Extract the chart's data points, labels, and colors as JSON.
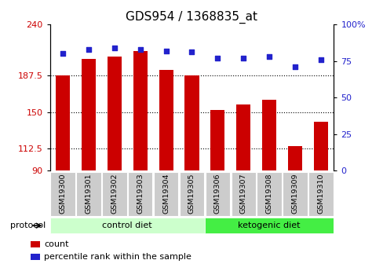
{
  "title": "GDS954 / 1368835_at",
  "samples": [
    "GSM19300",
    "GSM19301",
    "GSM19302",
    "GSM19303",
    "GSM19304",
    "GSM19305",
    "GSM19306",
    "GSM19307",
    "GSM19308",
    "GSM19309",
    "GSM19310"
  ],
  "bar_values": [
    188,
    205,
    207,
    213,
    193,
    188,
    152,
    158,
    163,
    115,
    140
  ],
  "dot_values": [
    80,
    83,
    84,
    83,
    82,
    81,
    77,
    77,
    78,
    71,
    76
  ],
  "ylim_left": [
    90,
    240
  ],
  "ylim_right": [
    0,
    100
  ],
  "yticks_left": [
    90,
    112.5,
    150,
    187.5,
    240
  ],
  "yticks_right": [
    0,
    25,
    50,
    75,
    100
  ],
  "bar_color": "#CC0000",
  "dot_color": "#2222CC",
  "groups": [
    {
      "label": "control diet",
      "indices": [
        0,
        1,
        2,
        3,
        4,
        5
      ],
      "color": "#CCFFCC"
    },
    {
      "label": "ketogenic diet",
      "indices": [
        6,
        7,
        8,
        9,
        10
      ],
      "color": "#44EE44"
    }
  ],
  "protocol_label": "protocol",
  "legend_items": [
    {
      "label": "count",
      "color": "#CC0000"
    },
    {
      "label": "percentile rank within the sample",
      "color": "#2222CC"
    }
  ],
  "plot_bg_color": "#FFFFFF",
  "tick_label_color_left": "#CC0000",
  "tick_label_color_right": "#2222CC",
  "grid_color": "#000000",
  "title_fontsize": 11,
  "tick_fontsize": 8,
  "bar_width": 0.55
}
